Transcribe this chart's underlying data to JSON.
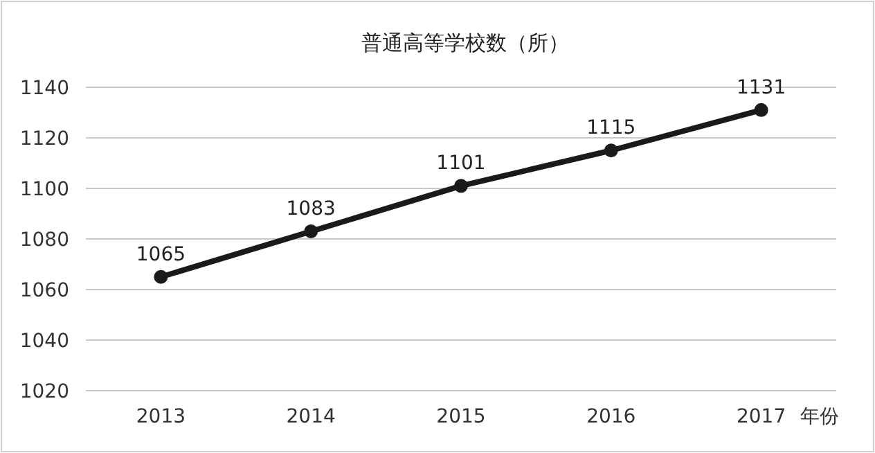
{
  "chart_data": {
    "type": "line",
    "title": "普通高等学校数（所）",
    "xlabel": "年份",
    "categories": [
      "2013",
      "2014",
      "2015",
      "2016",
      "2017"
    ],
    "series": [
      {
        "color": "#1a1a1a",
        "values": [
          1065,
          1083,
          1101,
          1115,
          1131
        ]
      }
    ],
    "ylim": [
      1020,
      1140
    ],
    "yticks": [
      1020,
      1040,
      1060,
      1080,
      1100,
      1120,
      1140
    ],
    "grid": "y",
    "marker": "circle",
    "line_style": "solid",
    "data_labels": true
  }
}
